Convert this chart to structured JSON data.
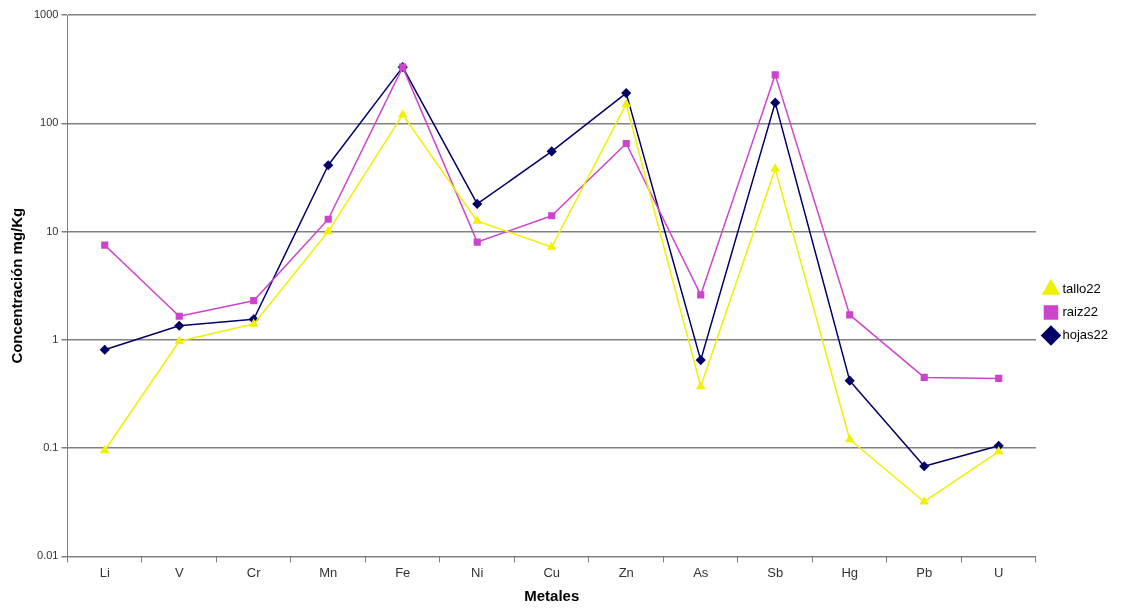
{
  "chart_data": {
    "type": "line",
    "xlabel": "Metales",
    "ylabel": "Concentración mg/Kg",
    "categories": [
      "Li",
      "V",
      "Cr",
      "Mn",
      "Fe",
      "Ni",
      "Cu",
      "Zn",
      "As",
      "Sb",
      "Hg",
      "Pb",
      "U"
    ],
    "series": [
      {
        "name": "hojas22",
        "color": "#000066",
        "marker": "diamond",
        "values": [
          0.81,
          1.35,
          1.55,
          41,
          330,
          18,
          55,
          190,
          0.65,
          155,
          0.42,
          0.068,
          0.105
        ]
      },
      {
        "name": "raiz22",
        "color": "#cc44cc",
        "marker": "square",
        "values": [
          7.5,
          1.65,
          2.3,
          13,
          330,
          8,
          14,
          65,
          2.6,
          280,
          1.7,
          0.45,
          0.44
        ]
      },
      {
        "name": "tallo22",
        "color": "#f0f000",
        "marker": "triangle",
        "values": [
          0.095,
          0.97,
          1.4,
          10,
          120,
          12.5,
          7.2,
          150,
          0.37,
          38,
          0.12,
          0.032,
          0.093
        ]
      }
    ],
    "log": "y",
    "ylim": [
      0.01,
      1000
    ],
    "yticks": [
      0.01,
      0.1,
      1,
      10,
      100,
      1000
    ],
    "grid": "y",
    "legend": "right"
  }
}
